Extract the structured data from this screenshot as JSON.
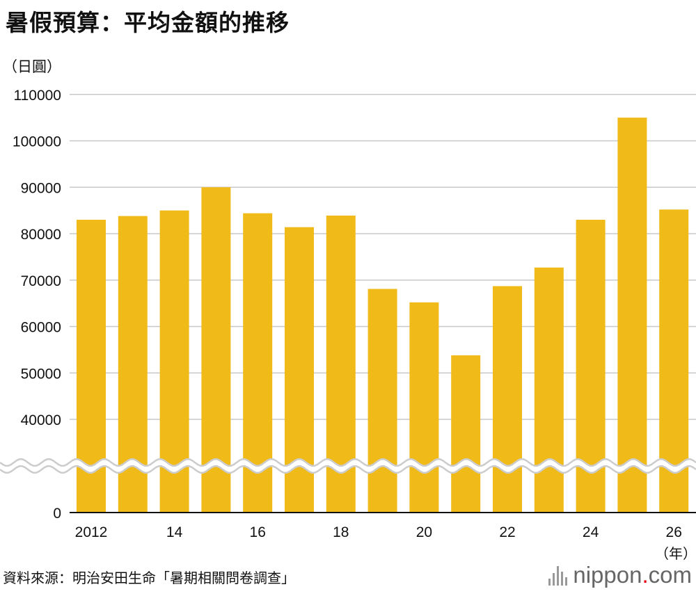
{
  "title": "暑假預算：平均金額的推移",
  "unit_label": "（日圓）",
  "source": "資料來源：明治安田生命「暑期相關問卷調查」",
  "logo": {
    "name": "nippon",
    "dot": ".",
    "suffix": "com"
  },
  "colors": {
    "bar": "#F0BA18",
    "grid": "#c8c8c8",
    "axis": "#111111",
    "break": "#cccccc"
  },
  "chart_data": {
    "type": "bar",
    "title": "暑假預算：平均金額的推移",
    "ylabel": "（日圓）",
    "xlabel": "（年）",
    "x_unit_label": "（年）",
    "categories": [
      "2012",
      "2013",
      "2014",
      "2015",
      "2016",
      "2017",
      "2018",
      "2019",
      "2020",
      "2021",
      "2022",
      "2023",
      "2024",
      "2025",
      "2026"
    ],
    "x_tick_labels": [
      "2012",
      "",
      "14",
      "",
      "16",
      "",
      "18",
      "",
      "20",
      "",
      "22",
      "",
      "24",
      "",
      "26"
    ],
    "values": [
      83000,
      83800,
      85000,
      90000,
      84400,
      81400,
      83900,
      68100,
      65200,
      53800,
      68700,
      72700,
      83000,
      105000,
      85200
    ],
    "y_ticks": [
      0,
      40000,
      50000,
      60000,
      70000,
      80000,
      90000,
      100000,
      110000
    ],
    "y_tick_labels": [
      "0",
      "40000",
      "50000",
      "60000",
      "70000",
      "80000",
      "90000",
      "100000",
      "110000"
    ],
    "ylim": [
      0,
      110000
    ],
    "axis_break": {
      "from": 0,
      "to": 40000
    },
    "grid": true,
    "legend": "none"
  }
}
